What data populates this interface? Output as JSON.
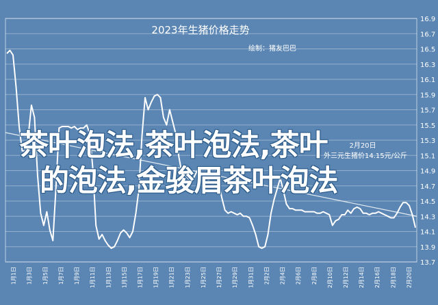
{
  "chart_data": {
    "type": "line",
    "title": "2023年生猪价格走势",
    "subtitle": "绘制：猪友巴巴",
    "annotation": [
      "2月20日",
      "外三元生猪价14.15元/公斤"
    ],
    "ylim": [
      13.7,
      16.9
    ],
    "yticks": [
      "16.9",
      "16.7",
      "16.5",
      "16.3",
      "16.1",
      "15.9",
      "15.7",
      "15.5",
      "15.3",
      "15.1",
      "14.9",
      "14.7",
      "14.5",
      "14.3",
      "14.1",
      "13.9",
      "13.7"
    ],
    "xticks": [
      "1月1日",
      "1月3日",
      "1月5日",
      "1月7日",
      "1月9日",
      "1月11日",
      "1月13日",
      "1月15日",
      "1月17日",
      "1月19日",
      "1月21日",
      "1月23日",
      "1月25日",
      "1月27日",
      "1月29日",
      "1月31日",
      "2月2日",
      "2月4日",
      "2月6日",
      "2月8日",
      "2月10日",
      "2月12日",
      "2月14日",
      "2月16日",
      "2月18日",
      "2月20日"
    ],
    "series": [
      {
        "values": [
          16.44,
          16.48,
          16.42,
          16.0,
          15.48,
          15.16,
          15.16,
          15.36,
          15.76,
          15.6,
          14.84,
          14.34,
          14.18,
          14.36,
          14.12,
          13.98,
          14.68,
          15.46,
          15.48,
          15.48,
          15.48,
          15.46,
          15.48,
          15.44,
          15.46,
          15.46,
          15.5,
          15.38,
          14.92,
          14.18,
          14.0,
          14.06,
          13.98,
          13.92,
          13.88,
          13.9,
          13.98,
          14.08,
          14.12,
          14.08,
          14.02,
          14.1,
          14.34,
          14.66,
          15.36,
          15.86,
          15.7,
          15.8,
          15.88,
          15.9,
          15.86,
          15.6,
          15.5,
          15.7,
          15.54,
          15.38,
          15.08,
          14.86,
          14.84,
          14.8,
          14.76,
          14.82,
          14.9,
          14.9,
          14.84,
          14.8,
          14.76,
          14.72,
          14.74,
          14.74,
          14.54,
          14.38,
          14.34,
          14.36,
          14.34,
          14.32,
          14.34,
          14.3,
          14.3,
          14.28,
          14.18,
          14.06,
          13.9,
          13.88,
          13.9,
          14.06,
          14.34,
          14.52,
          14.66,
          14.8,
          14.64,
          14.46,
          14.4,
          14.4,
          14.38,
          14.38,
          14.38,
          14.36,
          14.36,
          14.36,
          14.36,
          14.34,
          14.34,
          14.36,
          14.34,
          14.32,
          14.18,
          14.24,
          14.26,
          14.32,
          14.32,
          14.38,
          14.34,
          14.4,
          14.42,
          14.4,
          14.34,
          14.34,
          14.32,
          14.34,
          14.34,
          14.36,
          14.34,
          14.32,
          14.3,
          14.28,
          14.28,
          14.34,
          14.42,
          14.48,
          14.48,
          14.44,
          14.32,
          14.15
        ]
      },
      {
        "values": [
          15.4,
          14.3
        ]
      }
    ]
  },
  "watermark": [
    "茶叶泡法,茶叶泡法,茶叶",
    "的泡法,金骏眉茶叶泡法"
  ],
  "colors": {
    "background": "#5b86b3",
    "line": "#ffffff",
    "grid": "#ffffff",
    "watermark": "#ffffff"
  }
}
